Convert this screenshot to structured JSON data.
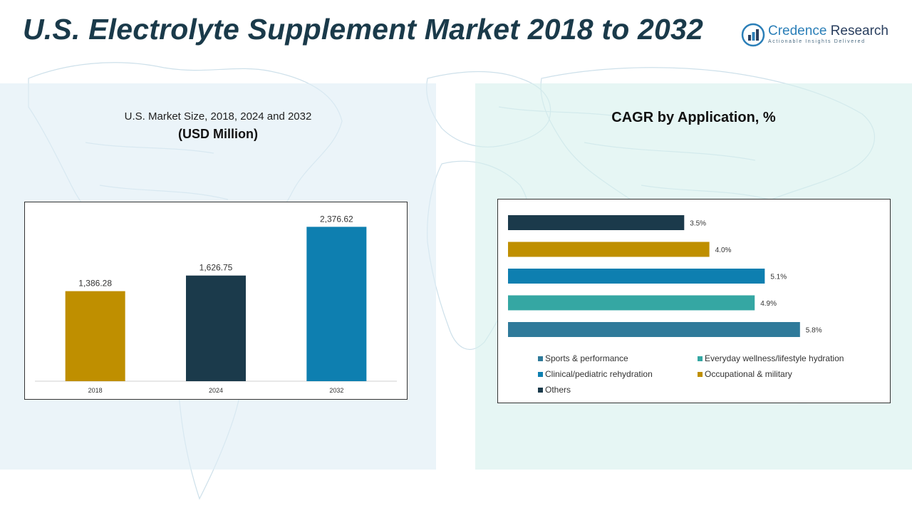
{
  "header": {
    "title": "U.S. Electrolyte Supplement Market 2018 to 2032",
    "logo_name_part1": "Credence",
    "logo_name_part2": " Research",
    "logo_tagline": "Actionable Insights Delivered"
  },
  "left_panel": {
    "subtitle": "U.S. Market Size, 2018, 2024 and 2032",
    "unit": "(USD Million)"
  },
  "right_panel": {
    "title": "CAGR by Application, %"
  },
  "colors": {
    "gold": "#bf8f00",
    "dark_navy": "#1b3a4b",
    "blue": "#0e7fb0",
    "teal": "#35a7a3",
    "steel_blue": "#2f7a9a",
    "title_text": "#1a3a4a"
  },
  "chart_data": [
    {
      "type": "bar",
      "categories": [
        "2018",
        "2024",
        "2032"
      ],
      "values": [
        1386.28,
        1626.75,
        2376.62
      ],
      "value_labels": [
        "1,386.28",
        "1,626.75",
        "2,376.62"
      ],
      "bar_colors": [
        "#bf8f00",
        "#1b3a4b",
        "#0e7fb0"
      ],
      "title": "U.S. Market Size, 2018, 2024 and 2032",
      "ylabel": "(USD Million)",
      "xlabel": "",
      "ylim": [
        0,
        2600
      ],
      "grid": false
    },
    {
      "type": "bar",
      "orientation": "horizontal",
      "title": "CAGR by Application, %",
      "categories": [
        "Others",
        "Occupational & military",
        "Clinical/pediatric rehydration",
        "Everyday wellness/lifestyle hydration",
        "Sports & performance"
      ],
      "values": [
        3.5,
        4.0,
        5.1,
        4.9,
        5.8
      ],
      "value_labels": [
        "3.5%",
        "4.0%",
        "5.1%",
        "4.9%",
        "5.8%"
      ],
      "bar_colors": [
        "#1b3a4b",
        "#bf8f00",
        "#0e7fb0",
        "#35a7a3",
        "#2f7a9a"
      ],
      "xlim": [
        0,
        6.1
      ],
      "grid": false,
      "legend_position": "bottom",
      "legend": [
        {
          "label": "Sports & performance",
          "color": "#2f7a9a"
        },
        {
          "label": "Everyday wellness/lifestyle hydration",
          "color": "#35a7a3"
        },
        {
          "label": "Clinical/pediatric rehydration",
          "color": "#0e7fb0"
        },
        {
          "label": "Occupational & military",
          "color": "#bf8f00"
        },
        {
          "label": "Others",
          "color": "#1b3a4b"
        }
      ]
    }
  ]
}
